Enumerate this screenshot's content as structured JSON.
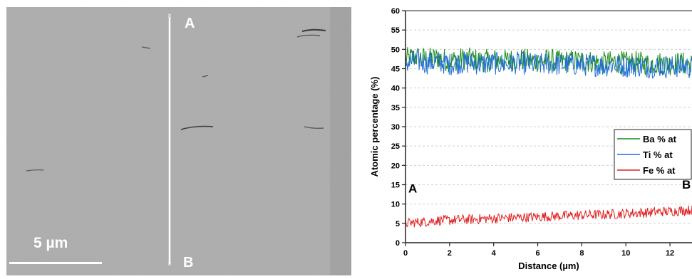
{
  "sem_image": {
    "scale_bar_label": "5 µm",
    "line_start_label": "A",
    "line_end_label": "B"
  },
  "chart_data": {
    "type": "line",
    "title": "",
    "xlabel": "Distance (µm)",
    "ylabel": "Atomic percentage (%)",
    "xlim": [
      0,
      13
    ],
    "ylim": [
      0,
      60
    ],
    "x_ticks": [
      "0",
      "2",
      "4",
      "6",
      "8",
      "10",
      "12"
    ],
    "y_ticks": [
      "0",
      "5",
      "10",
      "15",
      "20",
      "25",
      "30",
      "35",
      "40",
      "45",
      "50",
      "55",
      "60"
    ],
    "grid": "horizontal dashed lines",
    "legend_position": "right, mid-height",
    "annotations": {
      "start": "A",
      "end": "B"
    },
    "series": [
      {
        "name": "Ba % at",
        "color": "#1a8a1a",
        "x": [
          0,
          0.5,
          1,
          1.5,
          2,
          2.5,
          3,
          3.5,
          4,
          4.5,
          5,
          5.5,
          6,
          6.5,
          7,
          7.5,
          8,
          8.5,
          9,
          9.5,
          10,
          10.5,
          11,
          11.5,
          12,
          12.5,
          13
        ],
        "values": [
          47.5,
          48,
          47.5,
          47.8,
          47,
          47.5,
          47.5,
          47,
          47.3,
          47,
          47.5,
          47.2,
          47,
          47.3,
          46.8,
          47,
          47,
          46.8,
          46.5,
          46.8,
          46.5,
          46.7,
          46.2,
          46.5,
          46.2,
          46.5,
          46
        ],
        "noise_amplitude": 3
      },
      {
        "name": "Ti % at",
        "color": "#1f6fd6",
        "x": [
          0,
          0.5,
          1,
          1.5,
          2,
          2.5,
          3,
          3.5,
          4,
          4.5,
          5,
          5.5,
          6,
          6.5,
          7,
          7.5,
          8,
          8.5,
          9,
          9.5,
          10,
          10.5,
          11,
          11.5,
          12,
          12.5,
          13
        ],
        "values": [
          46.5,
          47,
          46.5,
          46.8,
          46.2,
          46.6,
          46.5,
          46.2,
          46.4,
          46.2,
          46.5,
          46.3,
          46,
          46.3,
          46,
          46.2,
          46,
          46,
          45.8,
          46,
          45.6,
          45.8,
          45.5,
          45.7,
          45.4,
          45.6,
          45.3
        ],
        "noise_amplitude": 3
      },
      {
        "name": "Fe % at",
        "color": "#e02020",
        "x": [
          0,
          0.5,
          1,
          1.5,
          2,
          2.5,
          3,
          3.5,
          4,
          4.5,
          5,
          5.5,
          6,
          6.5,
          7,
          7.5,
          8,
          8.5,
          9,
          9.5,
          10,
          10.5,
          11,
          11.5,
          12,
          12.5,
          13
        ],
        "values": [
          5,
          5.3,
          5.5,
          5.8,
          5.8,
          6,
          6,
          6.2,
          6.3,
          6.4,
          6.5,
          6.6,
          6.7,
          6.8,
          6.9,
          7,
          7.1,
          7.2,
          7.3,
          7.4,
          7.6,
          7.7,
          7.8,
          8,
          8.1,
          8.3,
          8.5
        ],
        "noise_amplitude": 1.3
      }
    ]
  }
}
